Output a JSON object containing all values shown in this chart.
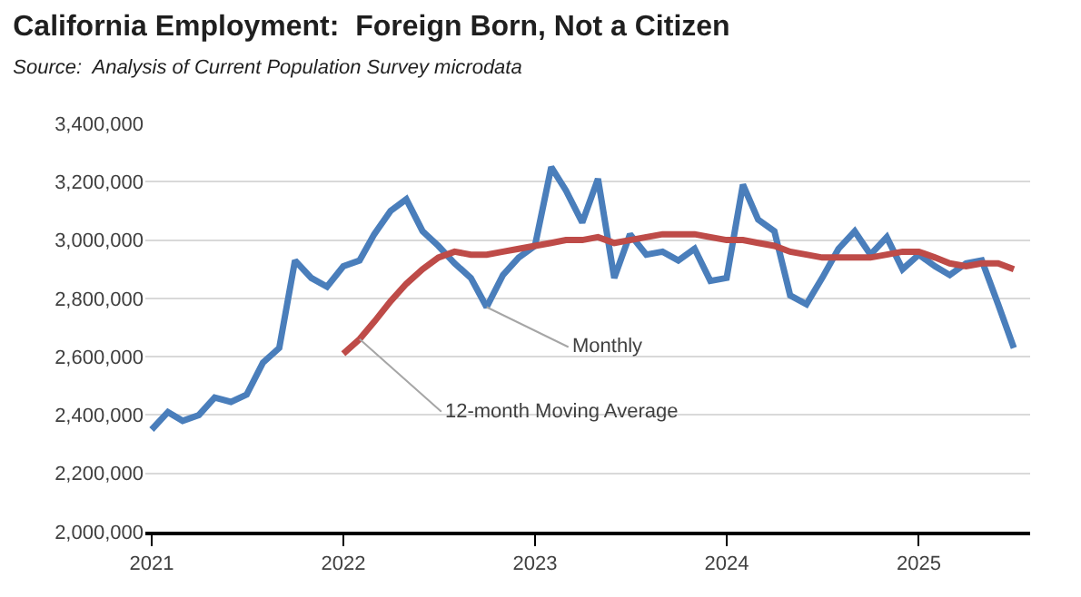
{
  "chart_data": {
    "type": "line",
    "title": "California Employment:  Foreign Born, Not a Citizen",
    "subtitle": "Source:  Analysis of Current Population Survey microdata",
    "x": [
      "2021-01",
      "2021-02",
      "2021-03",
      "2021-04",
      "2021-05",
      "2021-06",
      "2021-07",
      "2021-08",
      "2021-09",
      "2021-10",
      "2021-11",
      "2021-12",
      "2022-01",
      "2022-02",
      "2022-03",
      "2022-04",
      "2022-05",
      "2022-06",
      "2022-07",
      "2022-08",
      "2022-09",
      "2022-10",
      "2022-11",
      "2022-12",
      "2023-01",
      "2023-02",
      "2023-03",
      "2023-04",
      "2023-05",
      "2023-06",
      "2023-07",
      "2023-08",
      "2023-09",
      "2023-10",
      "2023-11",
      "2023-12",
      "2024-01",
      "2024-02",
      "2024-03",
      "2024-04",
      "2024-05",
      "2024-06",
      "2024-07",
      "2024-08",
      "2024-09",
      "2024-10",
      "2024-11",
      "2024-12",
      "2025-01",
      "2025-02",
      "2025-03",
      "2025-04",
      "2025-05",
      "2025-06",
      "2025-07"
    ],
    "series": [
      {
        "color": "#4a7ebb",
        "values": [
          2350000,
          2410000,
          2380000,
          2400000,
          2460000,
          2445000,
          2470000,
          2580000,
          2630000,
          2930000,
          2870000,
          2840000,
          2910000,
          2930000,
          3020000,
          3100000,
          3140000,
          3030000,
          2980000,
          2920000,
          2870000,
          2770000,
          2880000,
          2940000,
          2980000,
          3250000,
          3170000,
          3060000,
          3210000,
          2870000,
          3020000,
          2950000,
          2960000,
          2930000,
          2970000,
          2860000,
          2870000,
          3190000,
          3070000,
          3030000,
          2810000,
          2780000,
          2870000,
          2970000,
          3030000,
          2950000,
          3010000,
          2900000,
          2950000,
          2910000,
          2880000,
          2920000,
          2930000,
          2780000,
          2630000
        ]
      },
      {
        "color": "#be4b48",
        "values": [
          null,
          null,
          null,
          null,
          null,
          null,
          null,
          null,
          null,
          null,
          null,
          null,
          2610000,
          2660000,
          2720000,
          2790000,
          2850000,
          2900000,
          2940000,
          2960000,
          2950000,
          2950000,
          2960000,
          2970000,
          2980000,
          2990000,
          3000000,
          3000000,
          3010000,
          2990000,
          3000000,
          3010000,
          3020000,
          3020000,
          3020000,
          3010000,
          3000000,
          3000000,
          2990000,
          2980000,
          2960000,
          2950000,
          2940000,
          2940000,
          2940000,
          2940000,
          2950000,
          2960000,
          2960000,
          2940000,
          2920000,
          2910000,
          2920000,
          2920000,
          2900000
        ]
      }
    ],
    "annotations": [
      {
        "text": "Monthly",
        "x": "2022-10",
        "y": 2770000
      },
      {
        "text": "12-month Moving Average",
        "x": "2022-02",
        "y": 2660000
      }
    ],
    "xlim": [
      "2020-12-20",
      "2025-08-01"
    ],
    "xticks": [
      {
        "value": "2021-01",
        "label": "2021"
      },
      {
        "value": "2022-01",
        "label": "2022"
      },
      {
        "value": "2023-01",
        "label": "2023"
      },
      {
        "value": "2024-01",
        "label": "2024"
      },
      {
        "value": "2025-01",
        "label": "2025"
      }
    ],
    "ylim": [
      2000000,
      3400000
    ],
    "yticks": [
      {
        "value": 2000000,
        "label": "2,000,000"
      },
      {
        "value": 2200000,
        "label": "2,200,000"
      },
      {
        "value": 2400000,
        "label": "2,400,000"
      },
      {
        "value": 2600000,
        "label": "2,600,000"
      },
      {
        "value": 2800000,
        "label": "2,800,000"
      },
      {
        "value": 3000000,
        "label": "3,000,000"
      },
      {
        "value": 3200000,
        "label": "3,200,000"
      },
      {
        "value": 3400000,
        "label": "3,400,000"
      }
    ],
    "grid": "y",
    "marker": "none",
    "line_style": "solid"
  }
}
